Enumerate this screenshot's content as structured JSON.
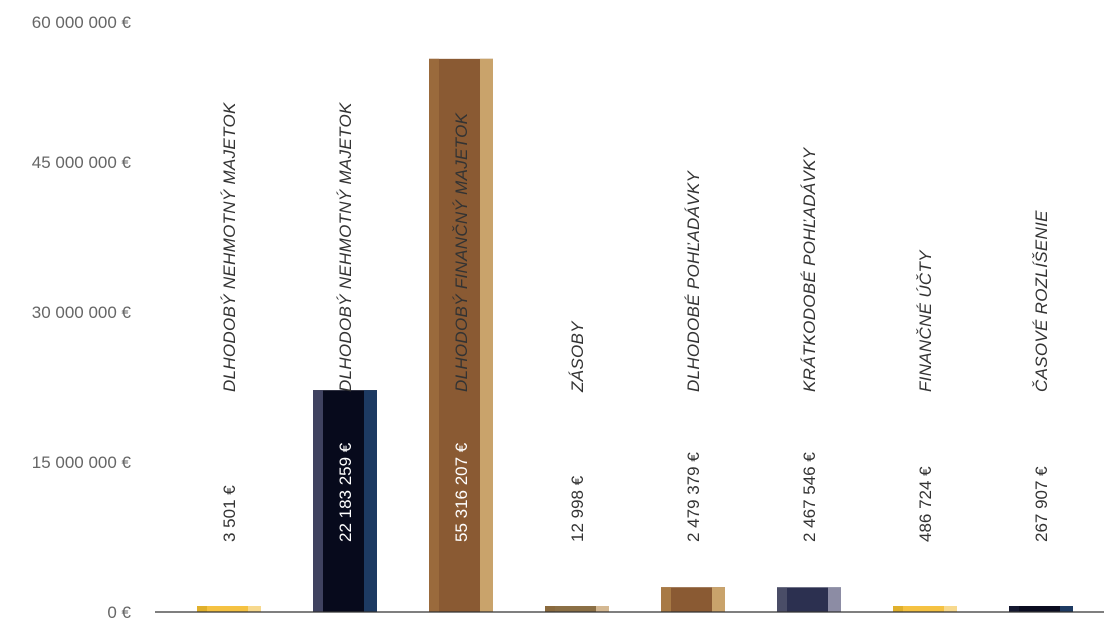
{
  "chart_data": {
    "type": "bar",
    "title": "",
    "xlabel": "",
    "ylabel": "",
    "ylim": [
      0,
      60000000
    ],
    "y_ticks": [
      "0 €",
      "15 000 000  €",
      "30 000 000  €",
      "45 000 000  €",
      "60 000 000  €"
    ],
    "y_tick_values": [
      0,
      15000000,
      30000000,
      45000000,
      60000000
    ],
    "grid": false,
    "categories": [
      "DLHODOBÝ NEHMOTNÝ MAJETOK",
      "DLHODOBÝ NEHMOTNÝ MAJETOK",
      "DLHODOBÝ FINANČNÝ MAJETOK",
      "ZÁSOBY",
      "DLHODOBÉ POHĽADÁVKY",
      "KRÁTKODOBÉ POHĽADÁVKY",
      "FINANČNÉ ÚČTY",
      "ČASOVÉ ROZLÍŠENIE"
    ],
    "values": [
      3501,
      22183259,
      55316207,
      12998,
      2479379,
      2467546,
      486724,
      267907
    ],
    "value_labels": [
      "3 501 €",
      "22 183 259 €",
      "55 316 207 €",
      "12 998 €",
      "2 479 379 €",
      "2 467 546 €",
      "486 724 €",
      "267 907 €"
    ],
    "bar_colors": [
      {
        "left": "#e0b02c",
        "mid": "#f5c242",
        "right": "#f7d98e"
      },
      {
        "left": "#3f4260",
        "mid": "#070a1c",
        "right": "#1d3a62"
      },
      {
        "left": "#9a6a3c",
        "mid": "#8a5a33",
        "right": "#c9a36b"
      },
      {
        "left": "#8a6a3e",
        "mid": "#8b6f45",
        "right": "#d4b892"
      },
      {
        "left": "#a87a45",
        "mid": "#8a5a33",
        "right": "#c9a36b"
      },
      {
        "left": "#4a4d67",
        "mid": "#2c3050",
        "right": "#8c8ca4"
      },
      {
        "left": "#e0b02c",
        "mid": "#f5c242",
        "right": "#f7d98e"
      },
      {
        "left": "#151830",
        "mid": "#0a0c20",
        "right": "#1d3a62"
      }
    ],
    "baseline_value": 7000000,
    "axis_color": "#333333"
  }
}
